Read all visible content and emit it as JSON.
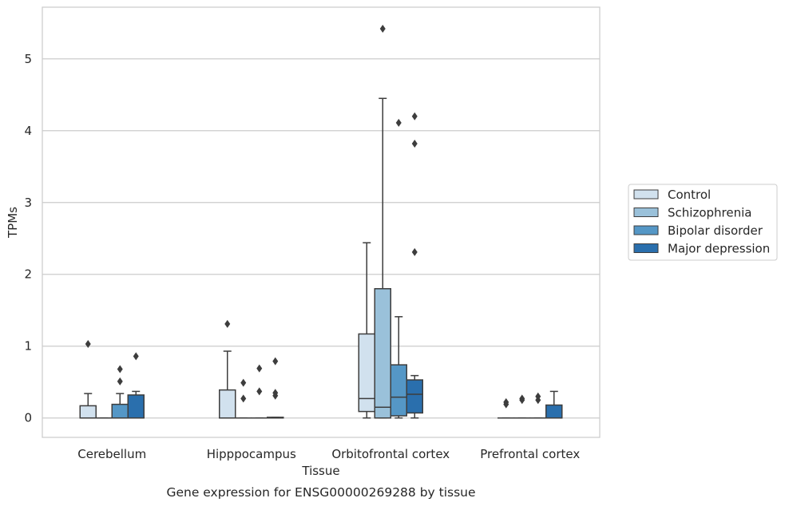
{
  "chart_data": {
    "type": "box",
    "title": "",
    "caption": "Gene expression for ENSG00000269288 by tissue",
    "xlabel": "Tissue",
    "ylabel": "TPMs",
    "ylim": [
      -0.27,
      5.72
    ],
    "yticks": [
      0,
      1,
      2,
      3,
      4,
      5
    ],
    "grid": "horizontal",
    "legend_placement": "right",
    "categories": [
      "Cerebellum",
      "Hipppocampus",
      "Orbitofrontal cortex",
      "Prefrontal cortex"
    ],
    "series": [
      {
        "name": "Control",
        "color": "#d1e1ee",
        "boxes": [
          {
            "q1": 0.0,
            "median": 0.0,
            "q3": 0.17,
            "whisker_low": 0.0,
            "whisker_high": 0.34,
            "outliers": [
              1.03
            ]
          },
          {
            "q1": 0.0,
            "median": 0.0,
            "q3": 0.39,
            "whisker_low": 0.0,
            "whisker_high": 0.93,
            "outliers": [
              1.31
            ]
          },
          {
            "q1": 0.09,
            "median": 0.27,
            "q3": 1.17,
            "whisker_low": 0.0,
            "whisker_high": 2.44,
            "outliers": []
          },
          {
            "q1": 0.0,
            "median": 0.0,
            "q3": 0.0,
            "whisker_low": 0.0,
            "whisker_high": 0.0,
            "outliers": [
              0.19,
              0.22
            ]
          }
        ]
      },
      {
        "name": "Schizophrenia",
        "color": "#9ac1da",
        "boxes": [
          {
            "q1": 0.0,
            "median": 0.0,
            "q3": 0.0,
            "whisker_low": 0.0,
            "whisker_high": 0.0,
            "outliers": []
          },
          {
            "q1": 0.0,
            "median": 0.0,
            "q3": 0.0,
            "whisker_low": 0.0,
            "whisker_high": 0.0,
            "outliers": [
              0.27,
              0.49
            ]
          },
          {
            "q1": 0.0,
            "median": 0.15,
            "q3": 1.8,
            "whisker_low": 0.0,
            "whisker_high": 4.45,
            "outliers": [
              5.42
            ]
          },
          {
            "q1": 0.0,
            "median": 0.0,
            "q3": 0.0,
            "whisker_low": 0.0,
            "whisker_high": 0.0,
            "outliers": [
              0.25,
              0.27
            ]
          }
        ]
      },
      {
        "name": "Bipolar disorder",
        "color": "#5597c6",
        "boxes": [
          {
            "q1": 0.0,
            "median": 0.0,
            "q3": 0.19,
            "whisker_low": 0.0,
            "whisker_high": 0.34,
            "outliers": [
              0.51,
              0.68
            ]
          },
          {
            "q1": 0.0,
            "median": 0.0,
            "q3": 0.0,
            "whisker_low": 0.0,
            "whisker_high": 0.0,
            "outliers": [
              0.37,
              0.69
            ]
          },
          {
            "q1": 0.03,
            "median": 0.29,
            "q3": 0.74,
            "whisker_low": 0.0,
            "whisker_high": 1.41,
            "outliers": [
              4.11
            ]
          },
          {
            "q1": 0.0,
            "median": 0.0,
            "q3": 0.0,
            "whisker_low": 0.0,
            "whisker_high": 0.0,
            "outliers": [
              0.25,
              0.3
            ]
          }
        ]
      },
      {
        "name": "Major depression",
        "color": "#2a6fad",
        "boxes": [
          {
            "q1": 0.0,
            "median": 0.0,
            "q3": 0.32,
            "whisker_low": 0.0,
            "whisker_high": 0.37,
            "outliers": [
              0.86
            ]
          },
          {
            "q1": 0.0,
            "median": 0.0,
            "q3": 0.01,
            "whisker_low": 0.0,
            "whisker_high": 0.01,
            "outliers": [
              0.31,
              0.35,
              0.79
            ]
          },
          {
            "q1": 0.07,
            "median": 0.33,
            "q3": 0.53,
            "whisker_low": 0.0,
            "whisker_high": 0.59,
            "outliers": [
              2.31,
              3.82,
              4.2
            ]
          },
          {
            "q1": 0.0,
            "median": 0.0,
            "q3": 0.18,
            "whisker_low": 0.0,
            "whisker_high": 0.37,
            "outliers": []
          }
        ]
      }
    ]
  }
}
